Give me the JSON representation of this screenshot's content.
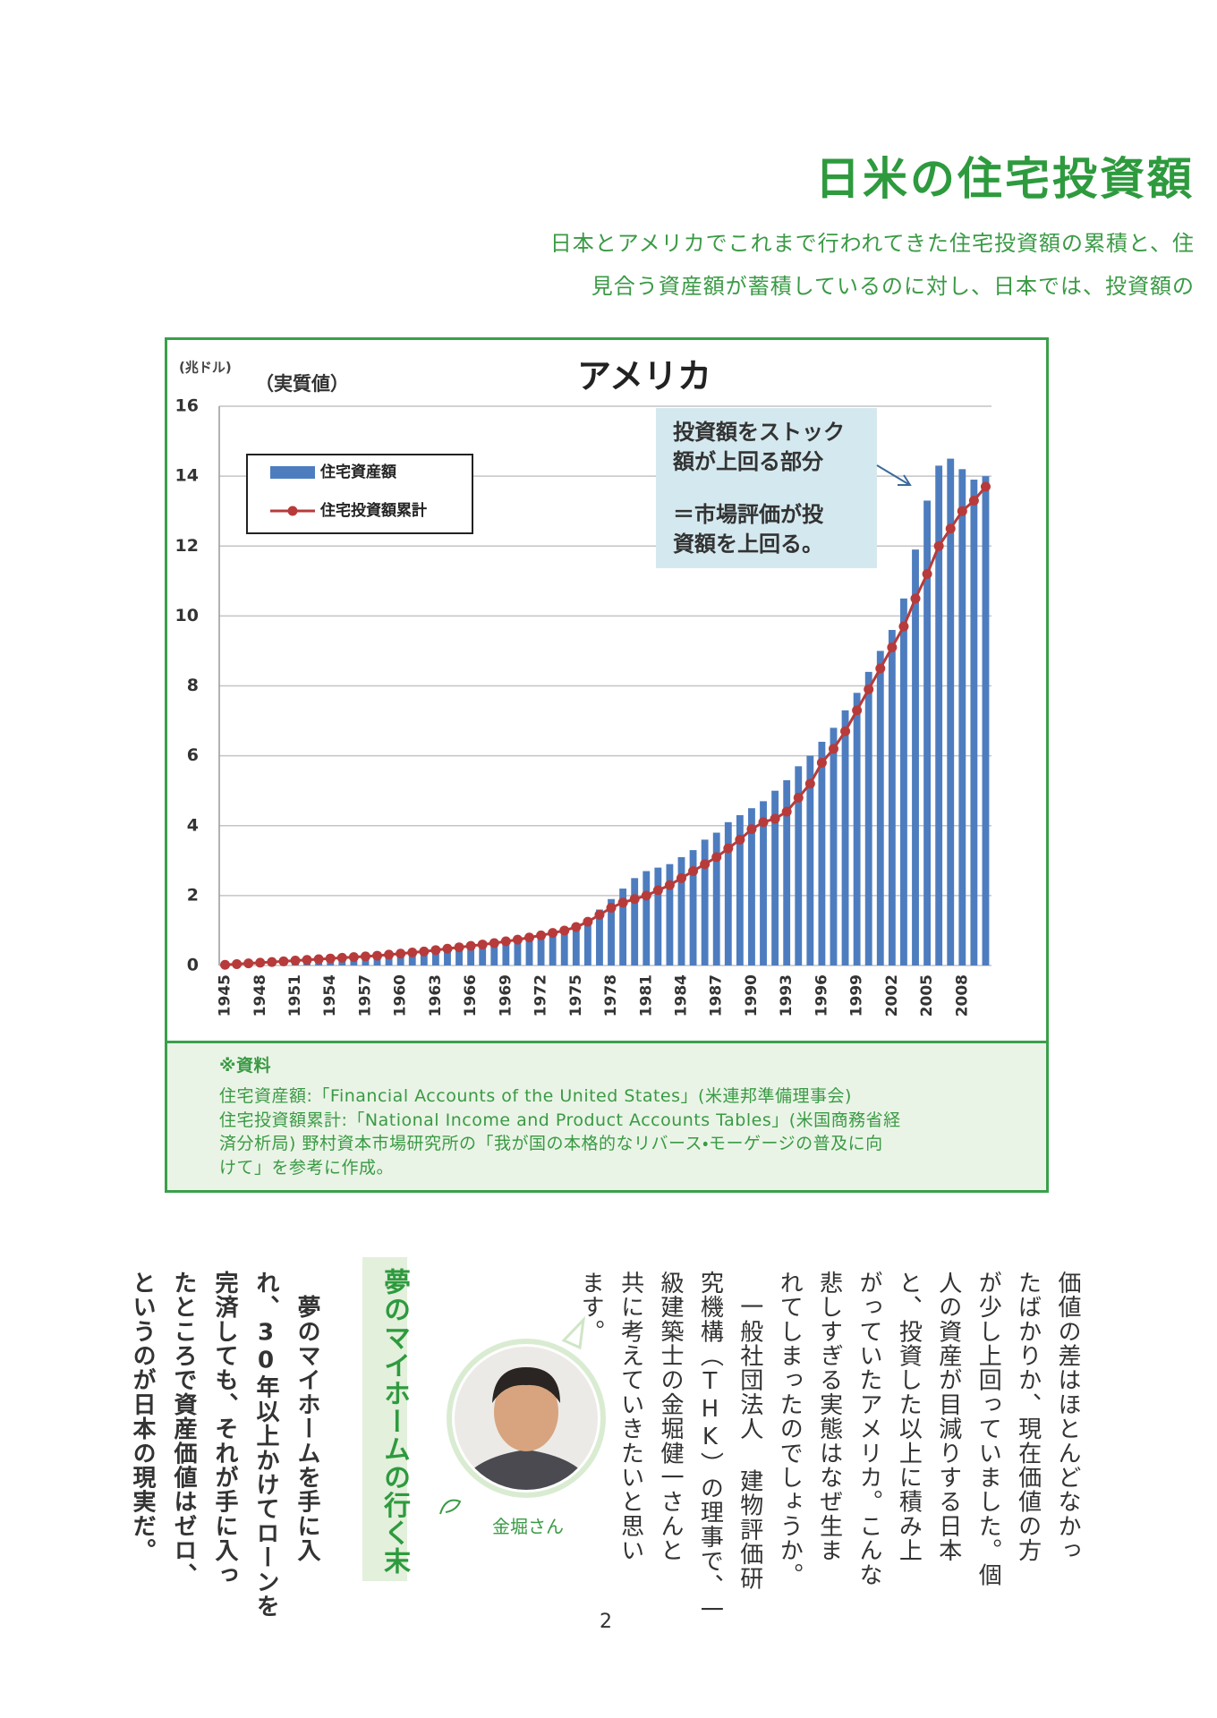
{
  "header": {
    "title": "日米の住宅投資額",
    "lead": [
      "日本とアメリカでこれまで行われてきた住宅投資額の累積と、住",
      "見合う資産額が蓄積しているのに対し、日本では、投資額の"
    ]
  },
  "chart_data": {
    "type": "bar",
    "title": "アメリカ",
    "unit_label": "(兆ドル)",
    "subtitle": "（実質値）",
    "annotation": [
      [
        "投資額をストック",
        "額が上回る部分"
      ],
      [
        "＝市場評価が投",
        "資額を上回る。"
      ]
    ],
    "categories": [
      "1945",
      null,
      null,
      "1948",
      null,
      null,
      "1951",
      null,
      null,
      "1954",
      null,
      null,
      "1957",
      null,
      null,
      "1960",
      null,
      null,
      "1963",
      null,
      null,
      "1966",
      null,
      null,
      "1969",
      null,
      null,
      "1972",
      null,
      null,
      "1975",
      null,
      null,
      "1978",
      null,
      null,
      "1981",
      null,
      null,
      "1984",
      null,
      null,
      "1987",
      null,
      null,
      "1990",
      null,
      null,
      "1993",
      null,
      null,
      "1996",
      null,
      null,
      "1999",
      null,
      null,
      "2002",
      null,
      null,
      "2005",
      null,
      null,
      "2008",
      null,
      null
    ],
    "series": [
      {
        "name": "住宅資産額",
        "type": "bar",
        "color": "#4d7dbf",
        "values": [
          0.05,
          0.07,
          0.09,
          0.1,
          0.12,
          0.14,
          0.16,
          0.18,
          0.2,
          0.22,
          0.24,
          0.26,
          0.28,
          0.3,
          0.33,
          0.36,
          0.39,
          0.42,
          0.46,
          0.5,
          0.54,
          0.58,
          0.62,
          0.66,
          0.7,
          0.75,
          0.82,
          0.9,
          1.0,
          1.05,
          1.1,
          1.3,
          1.6,
          1.9,
          2.2,
          2.5,
          2.7,
          2.8,
          2.9,
          3.1,
          3.3,
          3.6,
          3.8,
          4.1,
          4.3,
          4.5,
          4.7,
          5.0,
          5.3,
          5.7,
          6.0,
          6.4,
          6.8,
          7.3,
          7.8,
          8.4,
          9.0,
          9.6,
          10.5,
          11.9,
          13.3,
          14.3,
          14.5,
          14.2,
          13.9,
          14.0
        ]
      },
      {
        "name": "住宅投資額累計",
        "type": "line",
        "color": "#b73b3b",
        "values": [
          0.02,
          0.04,
          0.06,
          0.08,
          0.1,
          0.12,
          0.14,
          0.16,
          0.18,
          0.2,
          0.22,
          0.24,
          0.26,
          0.28,
          0.31,
          0.34,
          0.37,
          0.4,
          0.44,
          0.48,
          0.52,
          0.56,
          0.6,
          0.64,
          0.69,
          0.74,
          0.8,
          0.86,
          0.93,
          1.0,
          1.1,
          1.25,
          1.45,
          1.65,
          1.8,
          1.9,
          2.0,
          2.15,
          2.3,
          2.5,
          2.7,
          2.9,
          3.1,
          3.35,
          3.6,
          3.9,
          4.1,
          4.2,
          4.4,
          4.8,
          5.2,
          5.8,
          6.2,
          6.7,
          7.3,
          7.9,
          8.5,
          9.1,
          9.7,
          10.5,
          11.2,
          12.0,
          12.5,
          13.0,
          13.3,
          13.7
        ]
      }
    ],
    "ylim": [
      0,
      16
    ],
    "yticks": [
      0,
      2,
      4,
      6,
      8,
      10,
      12,
      14,
      16
    ],
    "grid": true
  },
  "source": {
    "heading": "※資料",
    "lines": [
      "住宅資産額:「Financial Accounts of the United States」(米連邦準備理事会)",
      "住宅投資額累計:「National Income and Product Accounts Tables」(米国商務省経",
      "済分析局) 野村資本市場研究所の「我が国の本格的なリバース・モーゲージの普及に向",
      "けて」を参考に作成。"
    ]
  },
  "body": {
    "columns": [
      "価値の差はほとんどなかっ",
      "たばかりか、現在価値の方",
      "が少し上回っていました。個",
      "人の資産が目減りする日本",
      "と、投資した以上に積み上",
      "がっていたアメリカ。こんな",
      "悲しすぎる実態はなぜ生ま",
      "れてしまったのでしょうか。",
      "　一般社団法人 建物評価研",
      "究機構（THK）の理事で、一",
      "級建築士の金堀健一さんと",
      "共に考えていきたいと思い",
      "ます。"
    ]
  },
  "sidebar": {
    "heading": "夢のマイホームの行く末",
    "columns": [
      "　夢のマイホームを手に入",
      "れ、30年以上かけてローンを",
      "完済しても、それが手に入っ",
      "たところで資産価値はゼロ、",
      "というのが日本の現実だ。"
    ]
  },
  "photo_caption": "金堀さん",
  "page_number": 2
}
